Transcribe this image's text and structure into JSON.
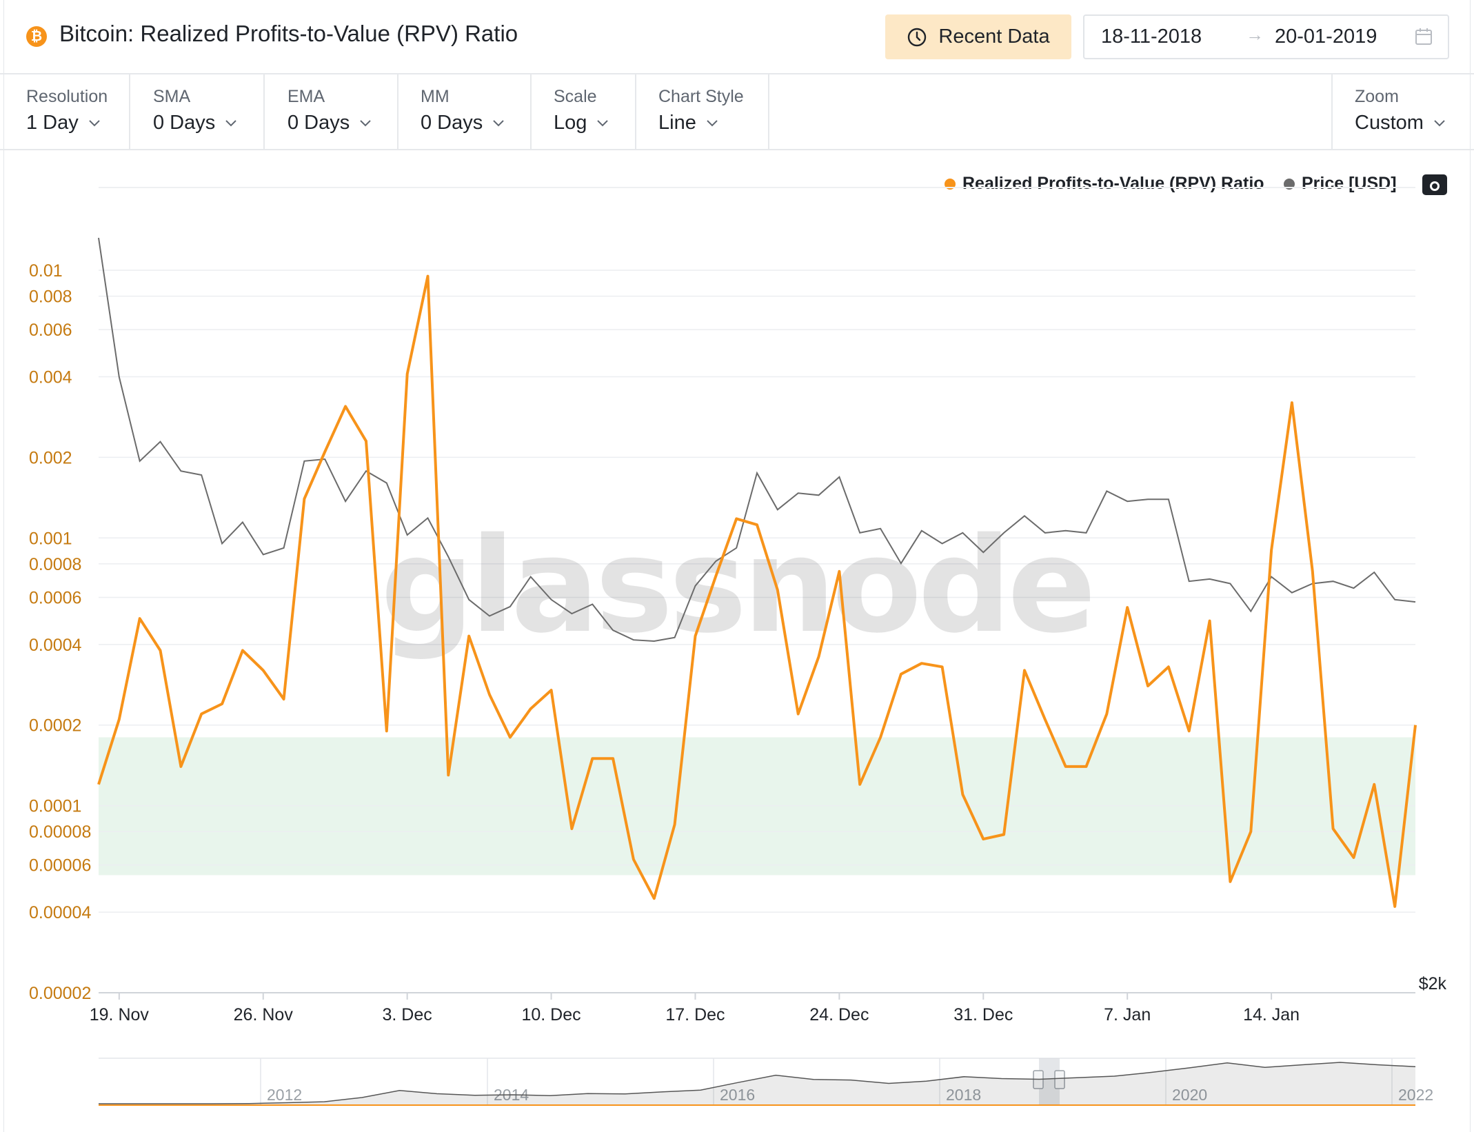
{
  "header": {
    "title": "Bitcoin: Realized Profits-to-Value (RPV) Ratio",
    "logo_symbol": "₿",
    "recent_label": "Recent Data",
    "date_from": "18-11-2018",
    "date_to": "20-01-2019",
    "date_arrow": "→"
  },
  "toolbar": {
    "items": [
      {
        "label": "Resolution",
        "value": "1 Day"
      },
      {
        "label": "SMA",
        "value": "0 Days"
      },
      {
        "label": "EMA",
        "value": "0 Days"
      },
      {
        "label": "MM",
        "value": "0 Days"
      },
      {
        "label": "Scale",
        "value": "Log"
      },
      {
        "label": "Chart Style",
        "value": "Line"
      }
    ],
    "zoom": {
      "label": "Zoom",
      "value": "Custom"
    }
  },
  "legend": {
    "rpv": "Realized Profits-to-Value (RPV) Ratio",
    "price": "Price [USD]"
  },
  "watermark": "glassnode",
  "colors": {
    "rpv": "#f7931a",
    "price": "#6b6b6b",
    "band": "#e8f5ec",
    "tick_orange": "#c57a10"
  },
  "chart_data": {
    "type": "line",
    "title": "Bitcoin: Realized Profits-to-Value (RPV) Ratio",
    "y_scale": "log",
    "ylim": [
      2e-05,
      0.014
    ],
    "y_ticks": [
      "0.01",
      "0.008",
      "0.006",
      "0.004",
      "0.002",
      "0.001",
      "0.0008",
      "0.0006",
      "0.0004",
      "0.0002",
      "0.0001",
      "0.00008",
      "0.00006",
      "0.00004",
      "0.00002"
    ],
    "y_right_tick": "$2k",
    "x_ticks": [
      "19. Nov",
      "26. Nov",
      "3. Dec",
      "10. Dec",
      "17. Dec",
      "24. Dec",
      "31. Dec",
      "7. Jan",
      "14. Jan"
    ],
    "x_start": "2018-11-18",
    "x_end": "2019-01-20",
    "band": {
      "from": 5.5e-05,
      "to": 0.00018
    },
    "series": [
      {
        "name": "Realized Profits-to-Value (RPV) Ratio",
        "values": [
          0.00012,
          0.00021,
          0.0005,
          0.00038,
          0.00014,
          0.00022,
          0.00024,
          0.00038,
          0.00032,
          0.00025,
          0.0014,
          0.0021,
          0.0031,
          0.0023,
          0.00019,
          0.0041,
          0.0095,
          0.00013,
          0.00043,
          0.00026,
          0.00018,
          0.00023,
          0.00027,
          8.2e-05,
          0.00015,
          0.00015,
          6.3e-05,
          4.5e-05,
          8.5e-05,
          0.00043,
          0.00072,
          0.00118,
          0.00112,
          0.00064,
          0.00022,
          0.00036,
          0.00075,
          0.00012,
          0.00018,
          0.00031,
          0.00034,
          0.00033,
          0.00011,
          7.5e-05,
          7.8e-05,
          0.00032,
          0.00021,
          0.00014,
          0.00014,
          0.00022,
          0.00055,
          0.00028,
          0.00033,
          0.00019,
          0.00049,
          5.2e-05,
          8e-05,
          0.0009,
          0.0032,
          0.00075,
          8.2e-05,
          6.4e-05,
          0.00012,
          4.2e-05,
          0.0002
        ]
      },
      {
        "name": "Price [USD]",
        "values": [
          5600,
          4750,
          4300,
          4400,
          4250,
          4230,
          3900,
          4000,
          3850,
          3880,
          4300,
          4310,
          4100,
          4250,
          4190,
          3940,
          4020,
          3840,
          3650,
          3580,
          3620,
          3750,
          3650,
          3590,
          3630,
          3520,
          3480,
          3475,
          3490,
          3710,
          3820,
          3880,
          4240,
          4060,
          4140,
          4130,
          4220,
          3950,
          3970,
          3810,
          3960,
          3900,
          3950,
          3860,
          3950,
          4030,
          3950,
          3960,
          3950,
          4150,
          4100,
          4110,
          4110,
          3730,
          3740,
          3720,
          3600,
          3750,
          3680,
          3720,
          3730,
          3700,
          3770,
          3650,
          3640
        ]
      }
    ]
  },
  "navigator": {
    "years": [
      "2012",
      "2014",
      "2016",
      "2018",
      "2020",
      "2022"
    ],
    "price_values": [
      0.1,
      0.2,
      0.3,
      0.2,
      1,
      5,
      13,
      120,
      900,
      400,
      250,
      300,
      230,
      420,
      380,
      650,
      1000,
      4300,
      13000,
      7000,
      6400,
      3700,
      5300,
      10500,
      8000,
      7200,
      9100,
      11300,
      19000,
      33000,
      58000,
      35000,
      47000,
      61000,
      47000,
      38000
    ]
  }
}
